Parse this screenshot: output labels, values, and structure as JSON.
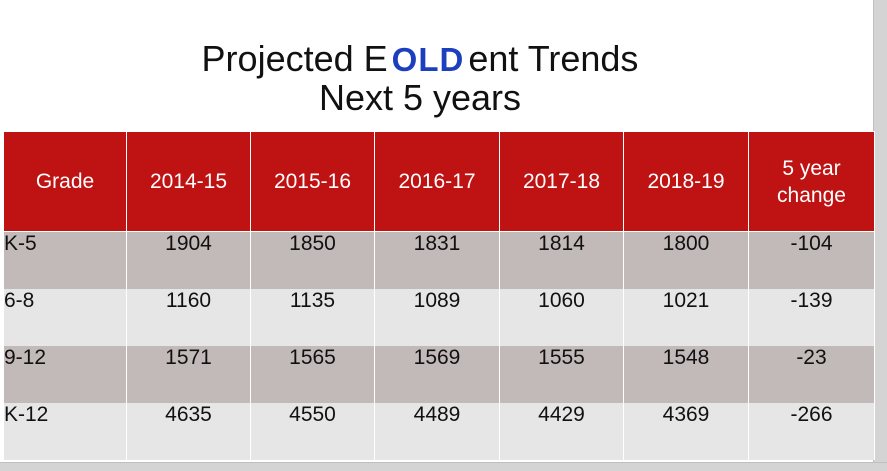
{
  "title": {
    "line1_before": "Projected E",
    "line1_stamp": "OLD",
    "line1_after": "ent Trends",
    "line2": "Next 5 years"
  },
  "table": {
    "headers": [
      "Grade",
      "2014-15",
      "2015-16",
      "2016-17",
      "2017-18",
      "2018-19",
      "5 year change"
    ],
    "rows": [
      [
        "K-5",
        "1904",
        "1850",
        "1831",
        "1814",
        "1800",
        "-104"
      ],
      [
        "6-8",
        "1160",
        "1135",
        "1089",
        "1060",
        "1021",
        "-139"
      ],
      [
        "9-12",
        "1571",
        "1565",
        "1569",
        "1555",
        "1548",
        "-23"
      ],
      [
        "K-12",
        "4635",
        "4550",
        "4489",
        "4429",
        "4369",
        "-266"
      ]
    ]
  },
  "colors": {
    "header_bg": "#bf1313",
    "row_odd": "#c2b9b9",
    "row_even": "#e6e6e6",
    "stamp": "#1b3fbf"
  }
}
